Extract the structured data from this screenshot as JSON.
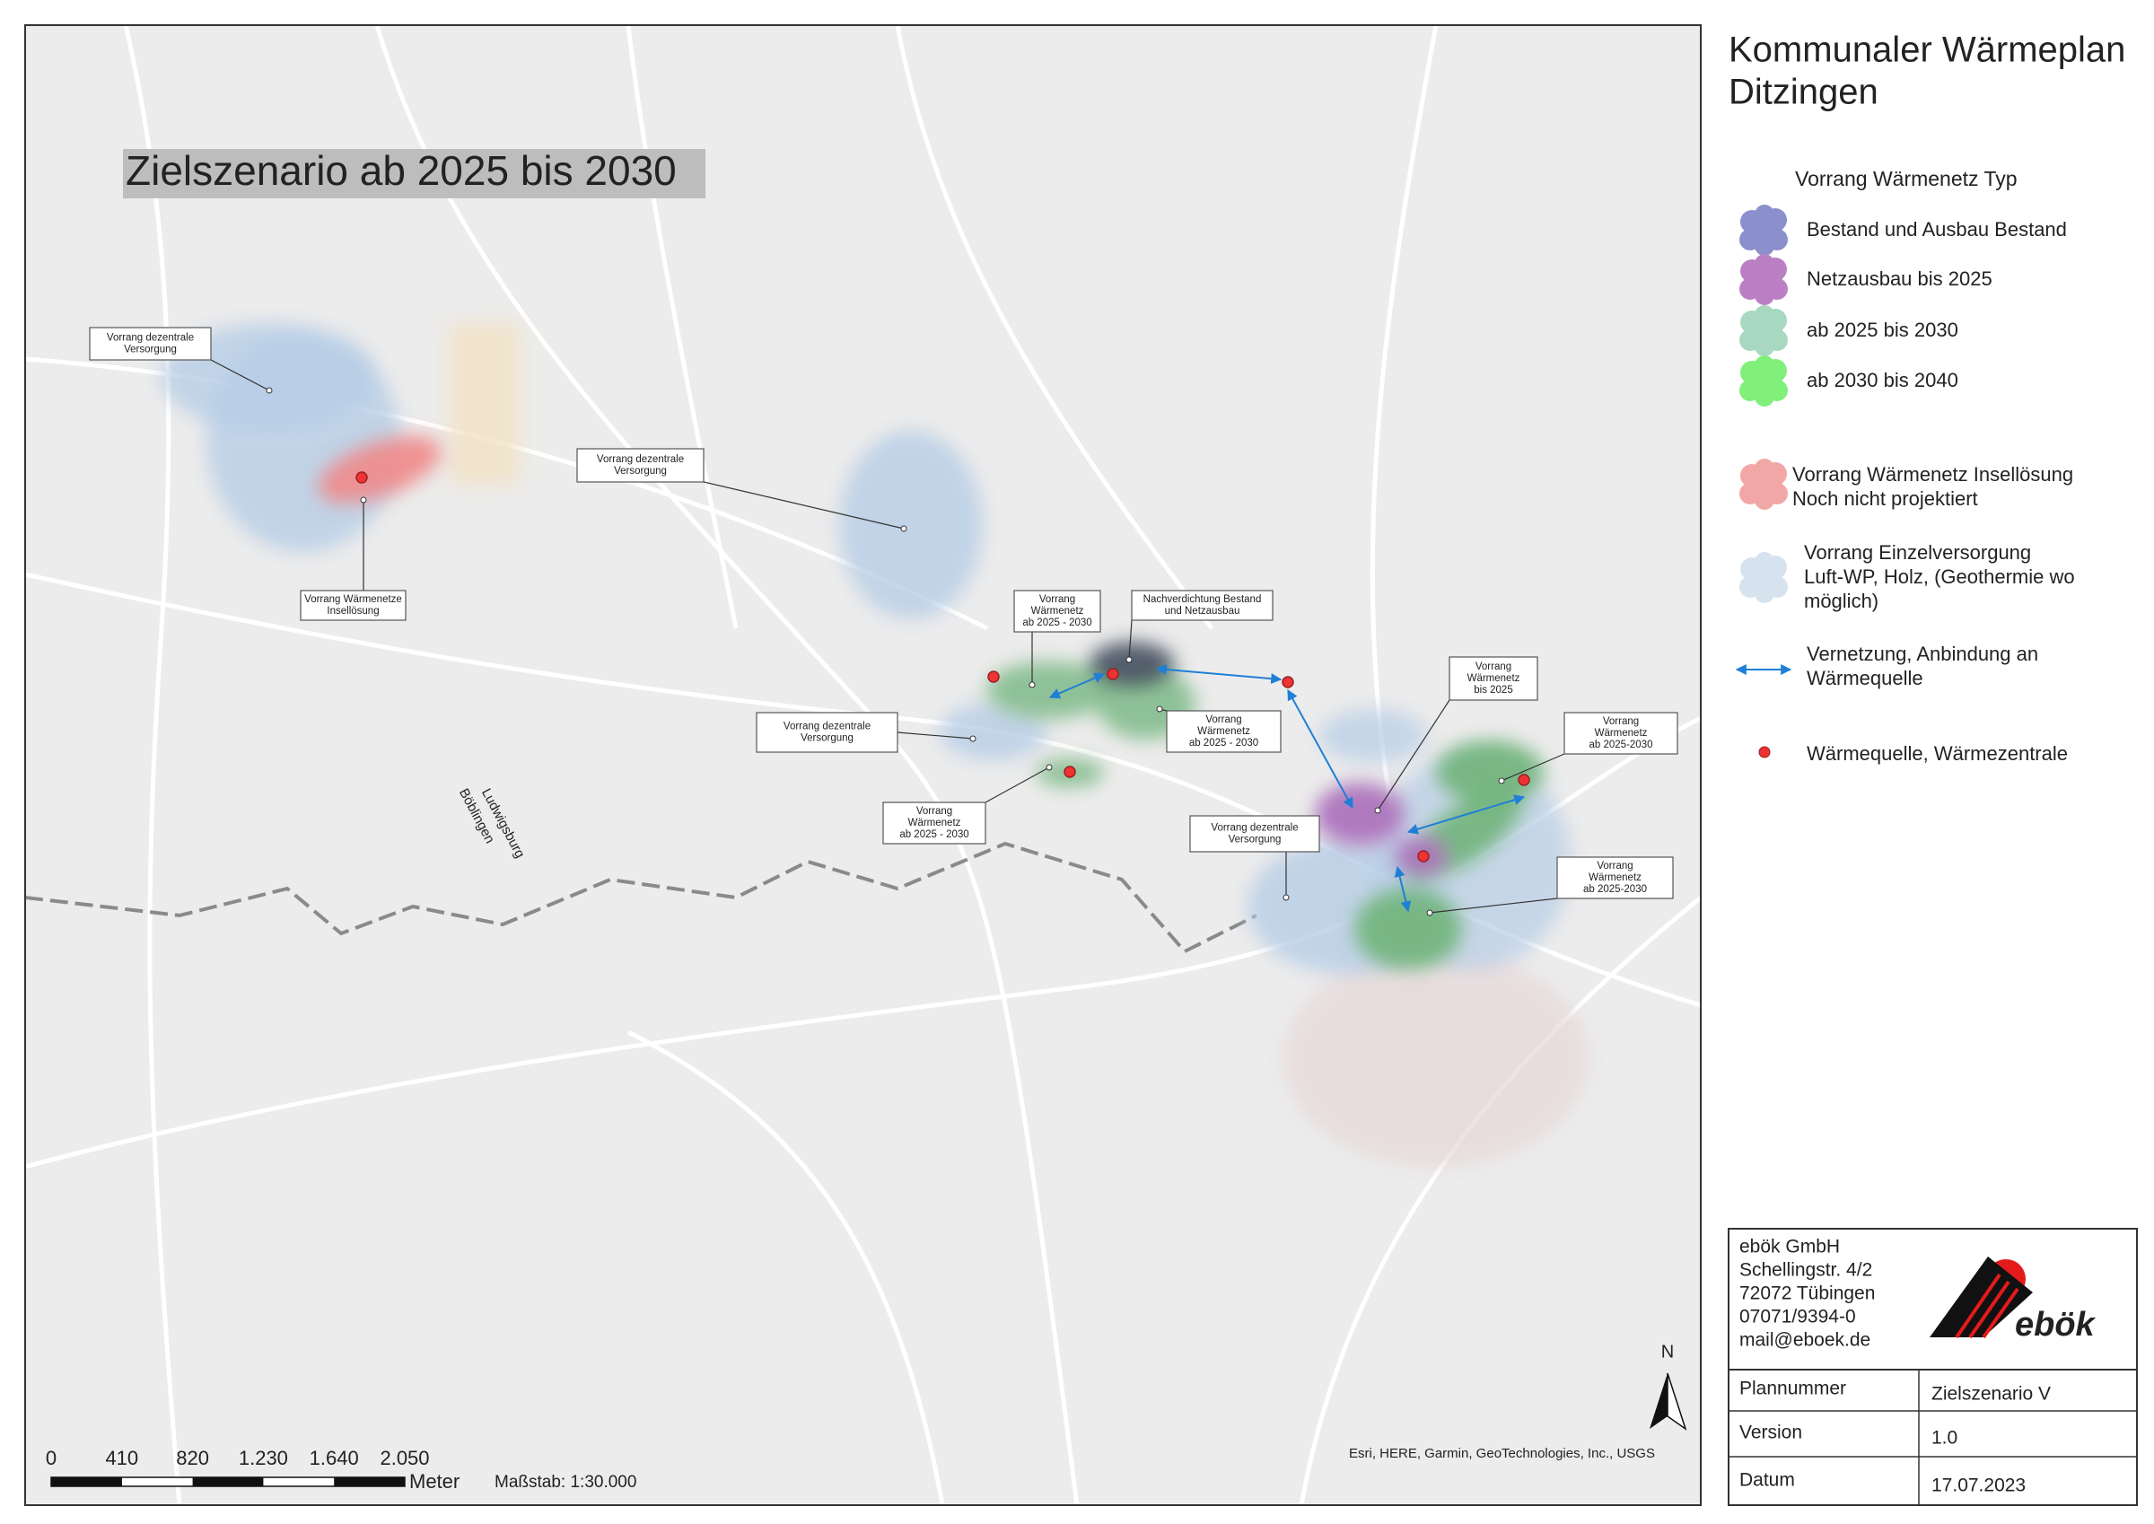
{
  "header": {
    "title": "Kommunaler Wärmeplan",
    "subtitle": "Ditzingen"
  },
  "map": {
    "title": "Zielszenario ab 2025 bis 2030",
    "place_labels": [
      "Ludwigsburg",
      "Böblingen"
    ],
    "callouts": [
      {
        "lines": [
          "Vorrang dezentrale",
          "Versorgung"
        ]
      },
      {
        "lines": [
          "Vorrang dezentrale",
          "Versorgung"
        ]
      },
      {
        "lines": [
          "Vorrang Wärmenetze",
          "Insellösung"
        ]
      },
      {
        "lines": [
          "Vorrang",
          "Wärmenetz",
          "ab 2025 - 2030"
        ]
      },
      {
        "lines": [
          "Nachverdichtung Bestand",
          "und Netzausbau"
        ]
      },
      {
        "lines": [
          "Vorrang dezentrale",
          "Versorgung"
        ]
      },
      {
        "lines": [
          "Vorrang",
          "Wärmenetz",
          "ab 2025 - 2030"
        ]
      },
      {
        "lines": [
          "Vorrang",
          "Wärmenetz",
          "ab 2025 - 2030"
        ]
      },
      {
        "lines": [
          "Vorrang",
          "Wärmenetz",
          "bis 2025"
        ]
      },
      {
        "lines": [
          "Vorrang",
          "Wärmenetz",
          "ab 2025-2030"
        ]
      },
      {
        "lines": [
          "Vorrang dezentrale",
          "Versorgung"
        ]
      },
      {
        "lines": [
          "Vorrang",
          "Wärmenetz",
          "ab 2025-2030"
        ]
      }
    ],
    "scale_bar": {
      "labels": [
        "0",
        "410",
        "820",
        "1.230",
        "1.640",
        "2.050"
      ],
      "unit": "Meter",
      "scale": "Maßstab: 1:30.000"
    },
    "attribution": "Esri, HERE, Garmin, GeoTechnologies, Inc., USGS",
    "north": "N"
  },
  "legend": {
    "title": "Vorrang Wärmenetz Typ",
    "items": [
      {
        "lines": [
          "Bestand und Ausbau Bestand"
        ]
      },
      {
        "lines": [
          "Netzausbau bis 2025"
        ]
      },
      {
        "lines": [
          "ab 2025 bis 2030"
        ]
      },
      {
        "lines": [
          "ab 2030 bis 2040"
        ]
      },
      {
        "lines": [
          "Vorrang Wärmenetz Insellösung",
          "Noch nicht projektiert"
        ]
      },
      {
        "lines": [
          "Vorrang Einzelversorgung",
          "Luft-WP, Holz, (Geothermie wo",
          "möglich)"
        ]
      },
      {
        "lines": [
          "Vernetzung, Anbindung an",
          "Wärmequelle"
        ]
      },
      {
        "lines": [
          "Wärmequelle, Wärmezentrale"
        ]
      }
    ]
  },
  "info": {
    "address": [
      "ebök GmbH",
      "Schellingstr. 4/2",
      "72072 Tübingen",
      "07071/9394-0",
      "mail@eboek.de"
    ],
    "logo": "ebök",
    "rows": [
      [
        "Plannummer",
        "Zielszenario V"
      ],
      [
        "Version",
        "1.0"
      ],
      [
        "Datum",
        "17.07.2023"
      ]
    ]
  }
}
